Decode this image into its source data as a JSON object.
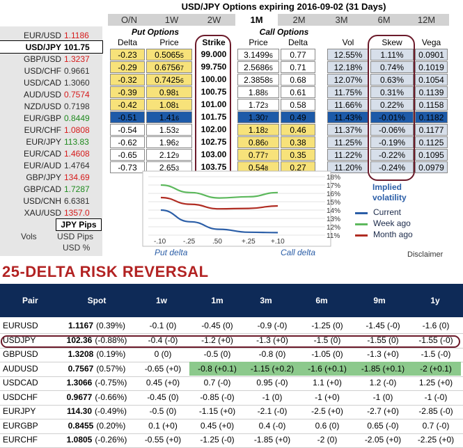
{
  "options_title": "USD/JPY Options expiring 2016-09-02 (31 Days)",
  "tabs": [
    "O/N",
    "1W",
    "2W",
    "1M",
    "2M",
    "3M",
    "6M",
    "12M"
  ],
  "active_tab": "1M",
  "pairs": [
    {
      "name": "EUR/USD",
      "value": "1.1186",
      "color": "#d61a1a"
    },
    {
      "name": "USD/JPY",
      "value": "101.75",
      "color": "#000000",
      "selected": true
    },
    {
      "name": "GBP/USD",
      "value": "1.3237",
      "color": "#d61a1a"
    },
    {
      "name": "USD/CHF",
      "value": "0.9661",
      "color": "#333333"
    },
    {
      "name": "USD/CAD",
      "value": "1.3060",
      "color": "#333333"
    },
    {
      "name": "AUD/USD",
      "value": "0.7574",
      "color": "#d61a1a"
    },
    {
      "name": "NZD/USD",
      "value": "0.7198",
      "color": "#333333"
    },
    {
      "name": "EUR/GBP",
      "value": "0.8449",
      "color": "#1f8a1f"
    },
    {
      "name": "EUR/CHF",
      "value": "1.0808",
      "color": "#d61a1a"
    },
    {
      "name": "EUR/JPY",
      "value": "113.83",
      "color": "#1f8a1f"
    },
    {
      "name": "EUR/CAD",
      "value": "1.4608",
      "color": "#d61a1a"
    },
    {
      "name": "EUR/AUD",
      "value": "1.4764",
      "color": "#333333"
    },
    {
      "name": "GBP/JPY",
      "value": "134.69",
      "color": "#d61a1a"
    },
    {
      "name": "GBP/CAD",
      "value": "1.7287",
      "color": "#1f8a1f"
    },
    {
      "name": "USD/CNH",
      "value": "6.6381",
      "color": "#333333"
    },
    {
      "name": "XAU/USD",
      "value": "1357.0",
      "color": "#d61a1a"
    }
  ],
  "pips_label": "JPY Pips",
  "vols_label": "Vols",
  "pips_options": [
    "USD Pips",
    "USD %"
  ],
  "section_put": "Put Options",
  "section_call": "Call Options",
  "columns": {
    "delta": "Delta",
    "price": "Price",
    "strike": "Strike",
    "call_price": "Price",
    "call_delta": "Delta",
    "vol": "Vol",
    "skew": "Skew",
    "vega": "Vega"
  },
  "rows": [
    {
      "put_delta": "-0.23",
      "put_price": "0.5065",
      "put_sub": "5",
      "strike": "99.000",
      "call_price": "3.1499",
      "call_sub": "6",
      "call_delta": "0.77",
      "vol": "12.55%",
      "skew": "1.11%",
      "vega": "0.0901",
      "put_c": "c-put",
      "call_c": "c-white"
    },
    {
      "put_delta": "-0.29",
      "put_price": "0.6756",
      "put_sub": "7",
      "strike": "99.750",
      "call_price": "2.5686",
      "call_sub": "5",
      "call_delta": "0.71",
      "vol": "12.18%",
      "skew": "0.74%",
      "vega": "0.1019",
      "put_c": "c-put",
      "call_c": "c-white"
    },
    {
      "put_delta": "-0.32",
      "put_price": "0.7425",
      "put_sub": "6",
      "strike": "100.00",
      "call_price": "2.3858",
      "call_sub": "5",
      "call_delta": "0.68",
      "vol": "12.07%",
      "skew": "0.63%",
      "vega": "0.1054",
      "put_c": "c-put",
      "call_c": "c-white"
    },
    {
      "put_delta": "-0.39",
      "put_price": "0.98",
      "put_sub": "1",
      "strike": "100.75",
      "call_price": "1.88",
      "call_sub": "5",
      "call_delta": "0.61",
      "vol": "11.75%",
      "skew": "0.31%",
      "vega": "0.1139",
      "put_c": "c-put",
      "call_c": "c-white"
    },
    {
      "put_delta": "-0.42",
      "put_price": "1.08",
      "put_sub": "1",
      "strike": "101.00",
      "call_price": "1.72",
      "call_sub": "3",
      "call_delta": "0.58",
      "vol": "11.66%",
      "skew": "0.22%",
      "vega": "0.1158",
      "put_c": "c-put",
      "call_c": "c-white"
    },
    {
      "put_delta": "-0.51",
      "put_price": "1.41",
      "put_sub": "6",
      "strike": "101.75",
      "call_price": "1.30",
      "call_sub": "7",
      "call_delta": "0.49",
      "vol": "11.43%",
      "skew": "-0.01%",
      "vega": "0.1182",
      "put_c": "c-sel",
      "call_c": "c-sel"
    },
    {
      "put_delta": "-0.54",
      "put_price": "1.53",
      "put_sub": "2",
      "strike": "102.00",
      "call_price": "1.18",
      "call_sub": "2",
      "call_delta": "0.46",
      "vol": "11.37%",
      "skew": "-0.06%",
      "vega": "0.1177",
      "put_c": "c-white",
      "call_c": "c-call"
    },
    {
      "put_delta": "-0.62",
      "put_price": "1.96",
      "put_sub": "2",
      "strike": "102.75",
      "call_price": "0.86",
      "call_sub": "0",
      "call_delta": "0.38",
      "vol": "11.25%",
      "skew": "-0.19%",
      "vega": "0.1125",
      "put_c": "c-white",
      "call_c": "c-call"
    },
    {
      "put_delta": "-0.65",
      "put_price": "2.12",
      "put_sub": "9",
      "strike": "103.00",
      "call_price": "0.77",
      "call_sub": "7",
      "call_delta": "0.35",
      "vol": "11.22%",
      "skew": "-0.22%",
      "vega": "0.1095",
      "put_c": "c-white",
      "call_c": "c-call"
    },
    {
      "put_delta": "-0.73",
      "put_price": "2.65",
      "put_sub": "3",
      "strike": "103.75",
      "call_price": "0.54",
      "call_sub": "8",
      "call_delta": "0.27",
      "vol": "11.20%",
      "skew": "-0.24%",
      "vega": "0.0979",
      "put_c": "c-white",
      "call_c": "c-call"
    }
  ],
  "chart_data": {
    "type": "line",
    "x_ticks": [
      "-.10",
      "-.25",
      ".50",
      "+.25",
      "+.10"
    ],
    "y_ticks": [
      "18%",
      "17%",
      "16%",
      "15%",
      "14%",
      "13%",
      "12%",
      "11%"
    ],
    "ylim": [
      11,
      18
    ],
    "xlabel_left": "Put delta",
    "xlabel_right": "Call delta",
    "legend_title": "Implied volatility",
    "series": [
      {
        "name": "Current",
        "color": "#2b5ea7",
        "values": [
          14.0,
          12.6,
          11.7,
          11.35,
          11.3
        ]
      },
      {
        "name": "Week ago",
        "color": "#5cb85c",
        "values": [
          17.0,
          16.1,
          15.45,
          15.6,
          16.1
        ]
      },
      {
        "name": "Month ago",
        "color": "#b02c22",
        "values": [
          15.5,
          14.7,
          14.15,
          14.2,
          14.5
        ]
      }
    ]
  },
  "disclaimer": "Disclaimer",
  "rr_title": "25-DELTA RISK REVERSAL",
  "rr_headers": [
    "Pair",
    "Spot",
    "1w",
    "1m",
    "3m",
    "6m",
    "9m",
    "1y"
  ],
  "rr_rows": [
    {
      "pair": "EURUSD",
      "spot": "1.1167",
      "chg": "(0.39%)",
      "v": [
        "-0.1 (0)",
        "-0.45 (0)",
        "-0.9 (-0)",
        "-1.25 (0)",
        "-1.45 (-0)",
        "-1.6 (0)"
      ]
    },
    {
      "pair": "USDJPY",
      "spot": "102.36",
      "chg": "(-0.88%)",
      "v": [
        "-0.4 (-0)",
        "-1.2 (+0)",
        "-1.3 (+0)",
        "-1.5 (0)",
        "-1.55 (0)",
        "-1.55 (-0)"
      ]
    },
    {
      "pair": "GBPUSD",
      "spot": "1.3208",
      "chg": "(0.19%)",
      "v": [
        "0 (0)",
        "-0.5 (0)",
        "-0.8 (0)",
        "-1.05 (0)",
        "-1.3 (+0)",
        "-1.5 (-0)"
      ]
    },
    {
      "pair": "AUDUSD",
      "spot": "0.7567",
      "chg": "(0.57%)",
      "v": [
        "-0.65 (+0)",
        "-0.8 (+0.1)",
        "-1.15 (+0.2)",
        "-1.6 (+0.1)",
        "-1.85 (+0.1)",
        "-2 (+0.1)"
      ],
      "green": [
        1,
        2,
        3,
        4,
        5
      ]
    },
    {
      "pair": "USDCAD",
      "spot": "1.3066",
      "chg": "(-0.75%)",
      "v": [
        "0.45 (+0)",
        "0.7 (-0)",
        "0.95 (-0)",
        "1.1 (+0)",
        "1.2 (-0)",
        "1.25 (+0)"
      ]
    },
    {
      "pair": "USDCHF",
      "spot": "0.9677",
      "chg": "(-0.66%)",
      "v": [
        "-0.45 (0)",
        "-0.85 (-0)",
        "-1 (0)",
        "-1 (+0)",
        "-1 (0)",
        "-1 (-0)"
      ]
    },
    {
      "pair": "EURJPY",
      "spot": "114.30",
      "chg": "(-0.49%)",
      "v": [
        "-0.5 (0)",
        "-1.15 (+0)",
        "-2.1 (-0)",
        "-2.5 (+0)",
        "-2.7 (+0)",
        "-2.85 (-0)"
      ]
    },
    {
      "pair": "EURGBP",
      "spot": "0.8455",
      "chg": "(0.20%)",
      "v": [
        "0.1 (+0)",
        "0.45 (+0)",
        "0.4 (-0)",
        "0.6 (0)",
        "0.65 (-0)",
        "0.7 (-0)"
      ]
    },
    {
      "pair": "EURCHF",
      "spot": "1.0805",
      "chg": "(-0.26%)",
      "v": [
        "-0.55 (+0)",
        "-1.25 (-0)",
        "-1.85 (+0)",
        "-2 (0)",
        "-2.05 (+0)",
        "-2.25 (+0)"
      ]
    }
  ]
}
